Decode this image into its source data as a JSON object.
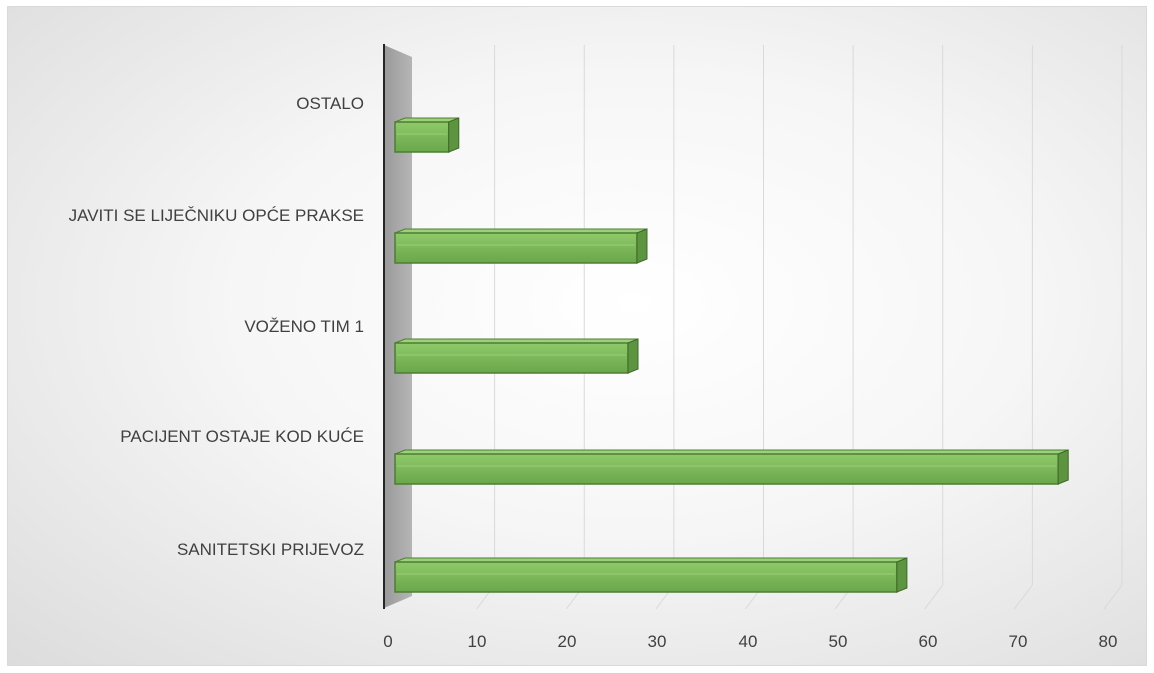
{
  "chart_data": {
    "type": "bar",
    "orientation": "horizontal",
    "categories": [
      "OSTALO",
      "JAVITI SE LIJEČNIKU OPĆE PRAKSE",
      "VOŽENO TIM 1",
      "PACIJENT OSTAJE KOD KUĆE",
      "SANITETSKI PRIJEVOZ"
    ],
    "values": [
      6,
      27,
      26,
      74,
      56
    ],
    "xlim": [
      0,
      80
    ],
    "xticks": [
      "0",
      "10",
      "20",
      "30",
      "40",
      "50",
      "60",
      "70",
      "80"
    ],
    "grid": true,
    "legend": "none",
    "colors": {
      "bar": "#7fba5c",
      "bar_edge": "#4e7d33",
      "bar_side": "#5c9440",
      "wall": "#a6a6a6"
    }
  }
}
